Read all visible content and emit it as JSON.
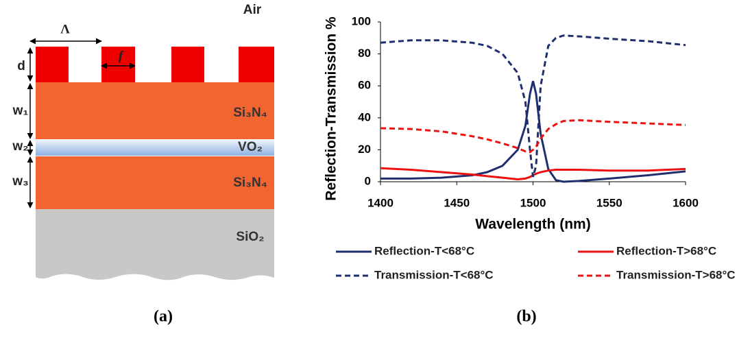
{
  "diagram": {
    "air": "Air",
    "period": "Λ",
    "fill": "f",
    "depth": "d",
    "w1": "w₁",
    "w2": "w₂",
    "w3": "w₃",
    "layer1": "Si₃N₄",
    "layer2": "VO₂",
    "layer3": "Si₃N₄",
    "substrate": "SiO₂",
    "caption": "(a)"
  },
  "chart_caption": "(b)",
  "chart_data": {
    "type": "line",
    "xlabel": "Wavelength (nm)",
    "ylabel": "Reflection-Transmission %",
    "x": [
      1400,
      1420,
      1440,
      1460,
      1470,
      1480,
      1490,
      1495,
      1498,
      1500,
      1502,
      1505,
      1510,
      1515,
      1520,
      1530,
      1550,
      1575,
      1600
    ],
    "series": [
      {
        "name": "Reflection-T<68°C",
        "color": "#1f2f6e",
        "dash": false,
        "values": [
          2,
          2,
          2.5,
          4,
          6,
          10,
          20,
          35,
          55,
          63,
          55,
          30,
          8,
          1,
          0,
          0.5,
          2,
          4,
          6.5
        ]
      },
      {
        "name": "Reflection-T>68°C",
        "color": "#ee1111",
        "dash": false,
        "values": [
          8.5,
          7.5,
          6,
          4.5,
          3.5,
          2.5,
          1.5,
          2,
          3,
          4,
          5,
          6,
          7,
          7.5,
          7.5,
          7.5,
          7,
          7,
          8
        ]
      },
      {
        "name": "Transmission-T<68°C",
        "color": "#1f2f6e",
        "dash": true,
        "values": [
          87,
          88.5,
          88.5,
          87,
          85,
          80,
          68,
          50,
          20,
          3,
          10,
          60,
          85,
          90,
          91.5,
          91,
          89.5,
          88,
          85.5
        ]
      },
      {
        "name": "Transmission-T>68°C",
        "color": "#ee1111",
        "dash": true,
        "values": [
          33.5,
          33,
          31.5,
          28.5,
          26.5,
          24,
          21,
          19,
          18.5,
          20,
          22,
          27,
          33,
          36,
          38,
          38.5,
          37.5,
          36.5,
          35.5
        ]
      }
    ],
    "xlim": [
      1400,
      1600
    ],
    "xticks": [
      1400,
      1450,
      1500,
      1550,
      1600
    ],
    "ylim": [
      0,
      100
    ],
    "yticks": [
      0,
      20,
      40,
      60,
      80,
      100
    ],
    "grid": false
  }
}
